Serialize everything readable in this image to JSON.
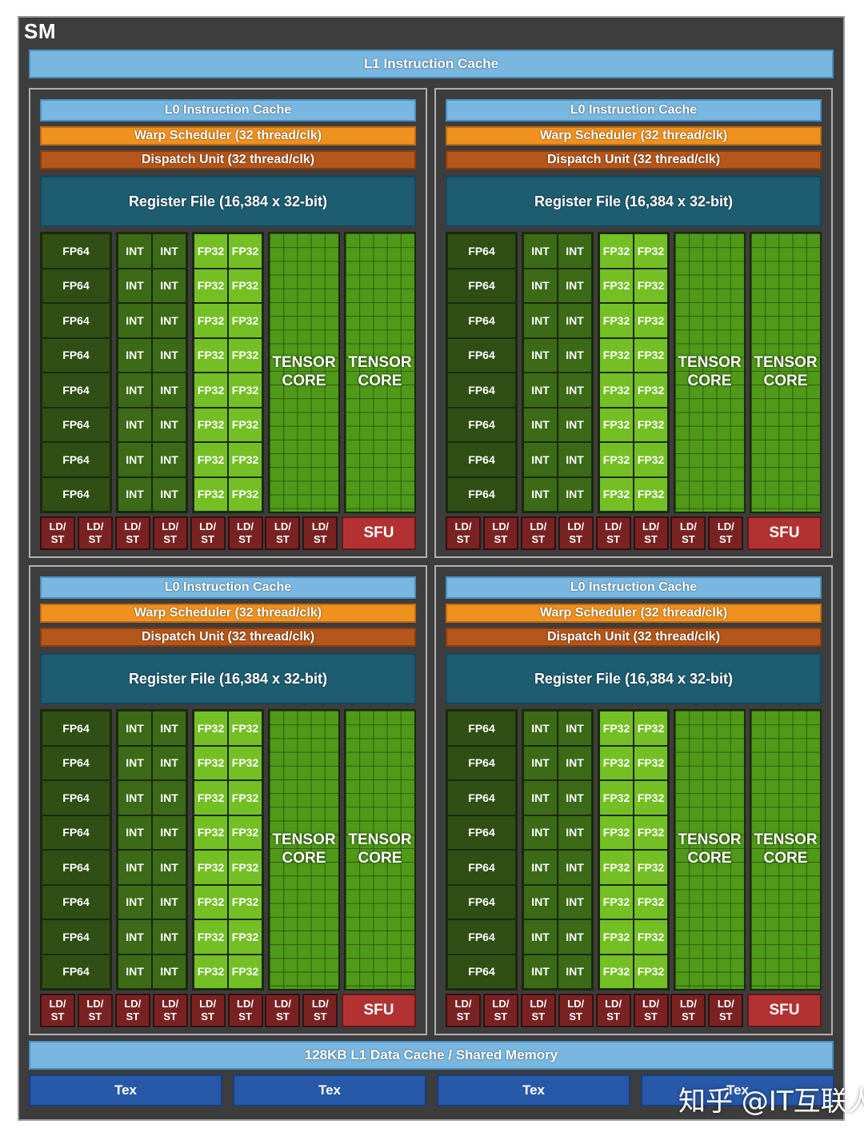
{
  "sm": {
    "title": "SM",
    "l1_instruction_cache": "L1 Instruction Cache",
    "l1_data_cache": "128KB L1 Data Cache / Shared Memory",
    "tex_units": [
      "Tex",
      "Tex",
      "Tex",
      "Tex"
    ]
  },
  "partition": {
    "l0_instruction_cache": "L0 Instruction Cache",
    "warp_scheduler": "Warp Scheduler (32 thread/clk)",
    "dispatch_unit": "Dispatch Unit (32 thread/clk)",
    "register_file": "Register File (16,384 x 32-bit)",
    "fp64_label": "FP64",
    "int_label": "INT",
    "fp32_label": "FP32",
    "tensor_core_line1": "TENSOR",
    "tensor_core_line2": "CORE",
    "ld_line": "LD/",
    "st_line": "ST",
    "sfu_label": "SFU",
    "rows": 8,
    "ld_st_units": 8
  },
  "partition_count": 4,
  "colors": {
    "l1_cache": "#7ab7e0",
    "warp_scheduler": "#f0901e",
    "dispatch_unit": "#b5561a",
    "register_file": "#1e5c70",
    "fp64": "#2f4f14",
    "int": "#3c6a16",
    "fp32": "#74c024",
    "tensor_core": "#4f9a18",
    "ld_st": "#7a2222",
    "sfu": "#b23232",
    "tex": "#2858a8"
  },
  "watermark": "知乎 @IT互联人生"
}
